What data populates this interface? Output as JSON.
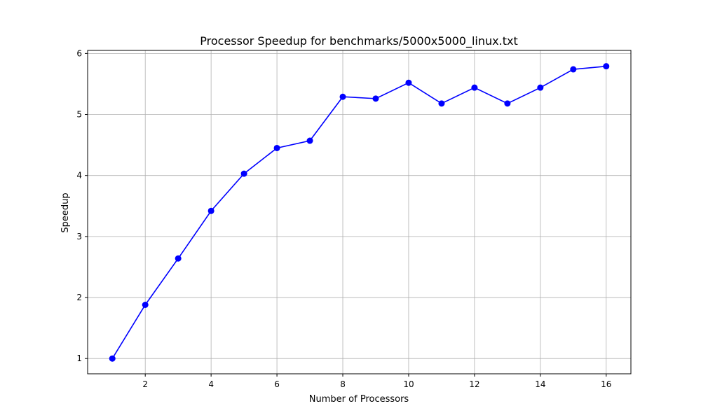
{
  "chart_data": {
    "type": "line",
    "title": "Processor Speedup for benchmarks/5000x5000_linux.txt",
    "xlabel": "Number of Processors",
    "ylabel": "Speedup",
    "xlim": [
      0.25,
      16.75
    ],
    "ylim": [
      0.75,
      6.05
    ],
    "xticks": [
      2,
      4,
      6,
      8,
      10,
      12,
      14,
      16
    ],
    "yticks": [
      1,
      2,
      3,
      4,
      5,
      6
    ],
    "grid": true,
    "series": [
      {
        "color": "#0000ff",
        "marker": "circle",
        "x": [
          1,
          2,
          3,
          4,
          5,
          6,
          7,
          8,
          9,
          10,
          11,
          12,
          13,
          14,
          15,
          16
        ],
        "y": [
          1.0,
          1.88,
          2.64,
          3.42,
          4.03,
          4.45,
          4.57,
          5.29,
          5.26,
          5.52,
          5.18,
          5.44,
          5.18,
          5.44,
          5.74,
          5.79
        ]
      }
    ]
  }
}
